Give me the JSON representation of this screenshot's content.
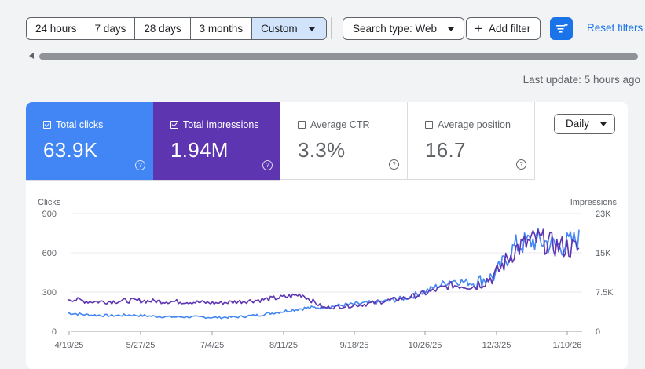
{
  "toolbar": {
    "ranges": [
      "24 hours",
      "7 days",
      "28 days",
      "3 months",
      "Custom"
    ],
    "search_type": "Search type: Web",
    "add_filter": "Add filter",
    "reset": "Reset filters",
    "last_update": "Last update: 5 hours ago"
  },
  "metrics": {
    "clicks": {
      "label": "Total clicks",
      "value": "63.9K",
      "checked": true
    },
    "impressions": {
      "label": "Total impressions",
      "value": "1.94M",
      "checked": true
    },
    "ctr": {
      "label": "Average CTR",
      "value": "3.3%",
      "checked": false
    },
    "position": {
      "label": "Average position",
      "value": "16.7",
      "checked": false
    }
  },
  "granularity": "Daily",
  "colors": {
    "clicks": "#4285f4",
    "impressions": "#5e35b1",
    "accent": "#1a73e8"
  },
  "chart_data": {
    "type": "line",
    "ylabel": "Clicks",
    "y2label": "Impressions",
    "ylim": [
      0,
      900
    ],
    "y2lim": [
      0,
      23000
    ],
    "yticks": [
      "0",
      "300",
      "600",
      "900"
    ],
    "y2ticks": [
      "0",
      "7.5K",
      "15K",
      "23K"
    ],
    "x_ticks": [
      "4/19/25",
      "5/27/25",
      "7/4/25",
      "8/11/25",
      "9/18/25",
      "10/26/25",
      "12/3/25",
      "1/10/26"
    ],
    "x": [
      "4/19/25",
      "5/3/25",
      "5/17/25",
      "5/31/25",
      "6/14/25",
      "6/28/25",
      "7/12/25",
      "7/26/25",
      "8/9/25",
      "8/23/25",
      "9/6/25",
      "9/13/25",
      "9/20/25",
      "10/4/25",
      "10/18/25",
      "11/1/25",
      "11/15/25",
      "11/29/25",
      "12/6/25",
      "12/13/25",
      "12/20/25",
      "12/27/25",
      "1/3/26",
      "1/10/26",
      "1/17/26"
    ],
    "series": [
      {
        "name": "Clicks",
        "color": "#4285f4",
        "axis": "left",
        "values": [
          140,
          125,
          120,
          125,
          115,
          110,
          110,
          105,
          110,
          125,
          150,
          175,
          185,
          200,
          215,
          230,
          260,
          320,
          390,
          370,
          420,
          650,
          700,
          650,
          700
        ]
      },
      {
        "name": "Impressions",
        "color": "#5e35b1",
        "axis": "right",
        "values": [
          6400,
          5800,
          5800,
          6000,
          5900,
          5800,
          5700,
          5500,
          5800,
          6100,
          6600,
          7200,
          4600,
          4900,
          5300,
          6000,
          6600,
          7700,
          9000,
          8700,
          10700,
          16000,
          18000,
          16600,
          16100
        ]
      }
    ]
  }
}
